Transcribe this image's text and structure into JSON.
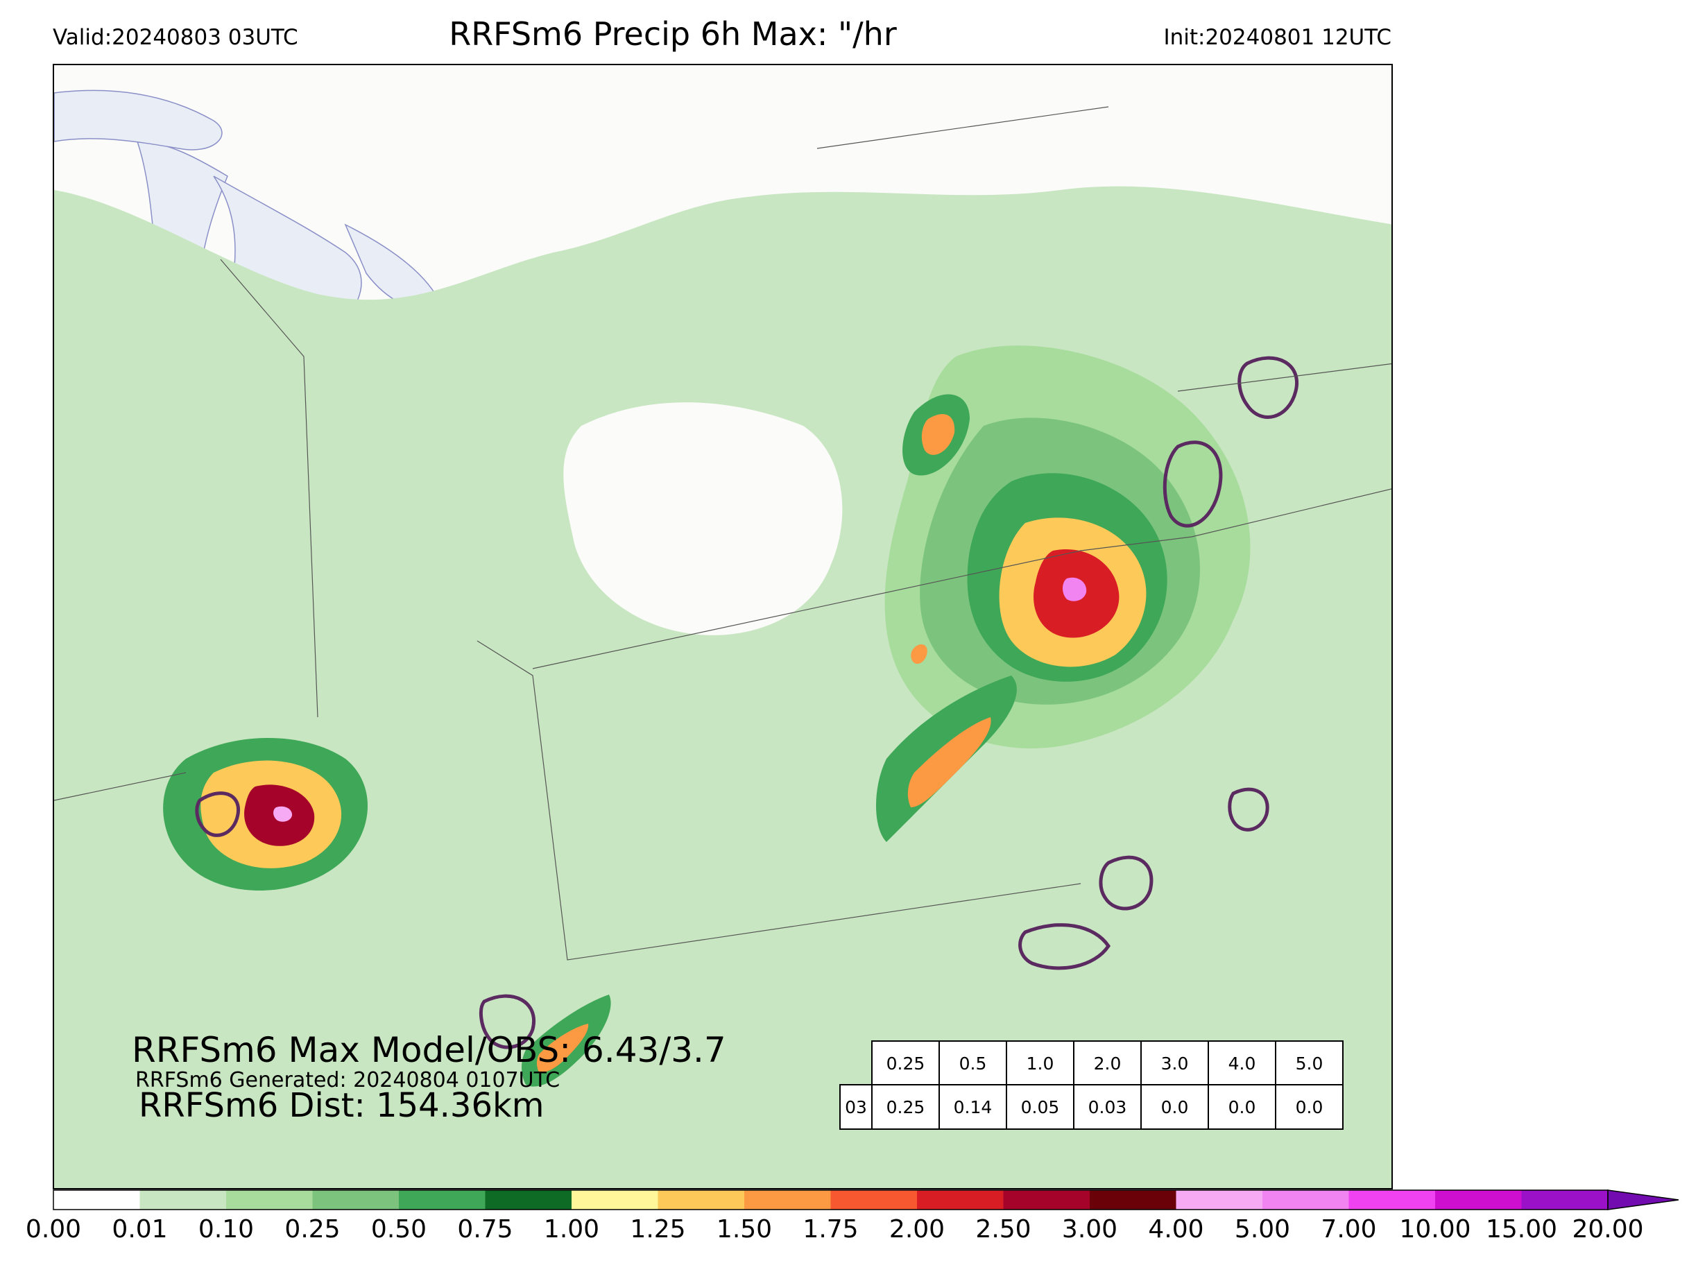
{
  "header": {
    "valid": "Valid:20240803 03UTC",
    "title": "RRFSm6 Precip 6h Max: \"/hr",
    "init": "Init:20240801 12UTC"
  },
  "annotations": {
    "max_model_obs": "RRFSm6 Max Model/OBS: 6.43/3.7",
    "generated": "RRFSm6 Generated: 20240804 0107UTC",
    "distance": "RRFSm6 Dist: 154.36km"
  },
  "threshold_table": {
    "thresholds": [
      "0.25",
      "0.5",
      "1.0",
      "2.0",
      "3.0",
      "4.0",
      "5.0"
    ],
    "row_label": "03",
    "values": [
      "0.25",
      "0.14",
      "0.05",
      "0.03",
      "0.0",
      "0.0",
      "0.0"
    ]
  },
  "colorbar": {
    "ticks": [
      "0.00",
      "0.01",
      "0.10",
      "0.25",
      "0.50",
      "0.75",
      "1.00",
      "1.25",
      "1.50",
      "1.75",
      "2.00",
      "2.50",
      "3.00",
      "4.00",
      "5.00",
      "7.00",
      "10.00",
      "15.00",
      "20.00"
    ],
    "colors": [
      "#ffffff",
      "#c8e6c1",
      "#a7dc9c",
      "#7cc47d",
      "#3fa758",
      "#0e6b25",
      "#fff79a",
      "#fdc959",
      "#fb9a43",
      "#f8582f",
      "#d81e24",
      "#a5032a",
      "#6a0008",
      "#f5aaf3",
      "#f184f1",
      "#f042f0",
      "#cf0fcf",
      "#9a11c8"
    ],
    "extend_color": "#720cb1",
    "units": "in/hr"
  },
  "map": {
    "region": "Northeast US / Great Lakes",
    "colors": {
      "water": "#e9eef6",
      "land": "#fbfbf9",
      "obs_contour": "#5a2a60"
    }
  }
}
